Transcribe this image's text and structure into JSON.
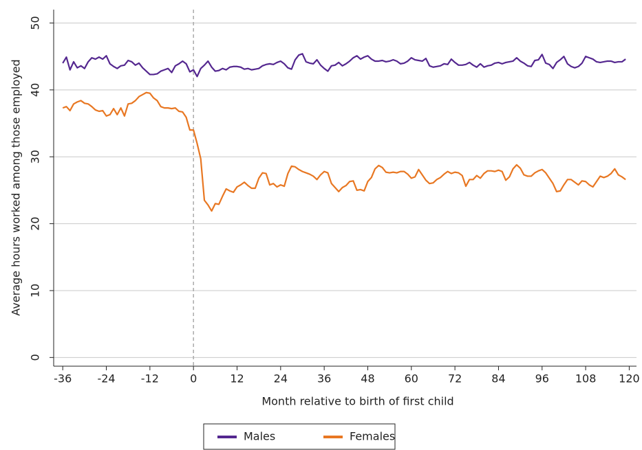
{
  "chart_data": {
    "type": "line",
    "x_label": "Month relative to birth of first child",
    "y_label": "Average hours worked among those employed",
    "x": [
      -36,
      -35,
      -34,
      -33,
      -32,
      -31,
      -30,
      -29,
      -28,
      -27,
      -26,
      -25,
      -24,
      -23,
      -22,
      -21,
      -20,
      -19,
      -18,
      -17,
      -16,
      -15,
      -14,
      -13,
      -12,
      -11,
      -10,
      -9,
      -8,
      -7,
      -6,
      -5,
      -4,
      -3,
      -2,
      -1,
      0,
      1,
      2,
      3,
      4,
      5,
      6,
      7,
      8,
      9,
      10,
      11,
      12,
      13,
      14,
      15,
      16,
      17,
      18,
      19,
      20,
      21,
      22,
      23,
      24,
      25,
      26,
      27,
      28,
      29,
      30,
      31,
      32,
      33,
      34,
      35,
      36,
      37,
      38,
      39,
      40,
      41,
      42,
      43,
      44,
      45,
      46,
      47,
      48,
      49,
      50,
      51,
      52,
      53,
      54,
      55,
      56,
      57,
      58,
      59,
      60,
      61,
      62,
      63,
      64,
      65,
      66,
      67,
      68,
      69,
      70,
      71,
      72,
      73,
      74,
      75,
      76,
      77,
      78,
      79,
      80,
      81,
      82,
      83,
      84,
      85,
      86,
      87,
      88,
      89,
      90,
      91,
      92,
      93,
      94,
      95,
      96,
      97,
      98,
      99,
      100,
      101,
      102,
      103,
      104,
      105,
      106,
      107,
      108,
      109,
      110,
      111,
      112,
      113,
      114,
      115,
      116,
      117,
      118,
      119
    ],
    "series": [
      {
        "name": "Males",
        "color": "#54278f",
        "values": [
          44.0,
          44.9,
          43.0,
          44.2,
          43.3,
          43.6,
          43.2,
          44.2,
          44.8,
          44.6,
          44.9,
          44.6,
          45.1,
          43.9,
          43.5,
          43.2,
          43.6,
          43.7,
          44.4,
          44.2,
          43.7,
          44.0,
          43.3,
          42.8,
          42.3,
          42.3,
          42.4,
          42.8,
          43.0,
          43.2,
          42.6,
          43.6,
          43.9,
          44.3,
          43.9,
          42.7,
          43.0,
          42.0,
          43.2,
          43.7,
          44.3,
          43.4,
          42.8,
          42.9,
          43.2,
          43.0,
          43.4,
          43.5,
          43.5,
          43.4,
          43.1,
          43.2,
          43.0,
          43.1,
          43.2,
          43.6,
          43.8,
          43.9,
          43.8,
          44.1,
          44.3,
          43.9,
          43.3,
          43.1,
          44.5,
          45.2,
          45.4,
          44.2,
          44.0,
          43.9,
          44.5,
          43.7,
          43.2,
          42.8,
          43.6,
          43.7,
          44.1,
          43.6,
          43.9,
          44.3,
          44.8,
          45.1,
          44.6,
          44.9,
          45.1,
          44.6,
          44.3,
          44.3,
          44.4,
          44.2,
          44.3,
          44.5,
          44.3,
          43.9,
          44.0,
          44.3,
          44.8,
          44.5,
          44.4,
          44.3,
          44.7,
          43.6,
          43.4,
          43.5,
          43.6,
          43.9,
          43.8,
          44.6,
          44.1,
          43.7,
          43.7,
          43.8,
          44.1,
          43.7,
          43.4,
          43.9,
          43.4,
          43.6,
          43.7,
          44.0,
          44.1,
          43.9,
          44.1,
          44.2,
          44.3,
          44.8,
          44.3,
          44.0,
          43.6,
          43.5,
          44.4,
          44.5,
          45.3,
          44.0,
          43.8,
          43.2,
          44.1,
          44.5,
          45.0,
          43.9,
          43.5,
          43.3,
          43.5,
          44.0,
          45.0,
          44.8,
          44.6,
          44.2,
          44.1,
          44.2,
          44.3,
          44.3,
          44.1,
          44.2,
          44.2,
          44.6
        ]
      },
      {
        "name": "Females",
        "color": "#e87722",
        "values": [
          37.3,
          37.5,
          36.9,
          37.9,
          38.2,
          38.4,
          38.0,
          37.9,
          37.5,
          37.0,
          36.8,
          36.9,
          36.1,
          36.3,
          37.2,
          36.3,
          37.3,
          36.1,
          37.9,
          38.0,
          38.4,
          39.0,
          39.3,
          39.6,
          39.5,
          38.8,
          38.4,
          37.5,
          37.3,
          37.3,
          37.2,
          37.3,
          36.8,
          36.7,
          35.9,
          34.0,
          34.0,
          32.0,
          29.7,
          23.5,
          22.8,
          21.9,
          23.0,
          22.9,
          24.1,
          25.2,
          24.9,
          24.7,
          25.5,
          25.8,
          26.2,
          25.7,
          25.3,
          25.3,
          26.8,
          27.6,
          27.5,
          25.8,
          26.0,
          25.5,
          25.8,
          25.6,
          27.5,
          28.6,
          28.5,
          28.1,
          27.8,
          27.6,
          27.4,
          27.1,
          26.6,
          27.3,
          27.8,
          27.6,
          26.0,
          25.4,
          24.8,
          25.4,
          25.7,
          26.3,
          26.4,
          25.0,
          25.1,
          24.9,
          26.3,
          26.9,
          28.2,
          28.7,
          28.4,
          27.7,
          27.6,
          27.7,
          27.6,
          27.8,
          27.8,
          27.4,
          26.8,
          27.0,
          28.1,
          27.3,
          26.5,
          26.0,
          26.1,
          26.6,
          26.9,
          27.4,
          27.8,
          27.5,
          27.7,
          27.6,
          27.2,
          25.6,
          26.6,
          26.6,
          27.2,
          26.8,
          27.5,
          27.9,
          27.9,
          27.8,
          28.0,
          27.8,
          26.5,
          27.0,
          28.2,
          28.8,
          28.3,
          27.3,
          27.1,
          27.1,
          27.6,
          27.9,
          28.1,
          27.6,
          26.8,
          26.0,
          24.8,
          24.9,
          25.8,
          26.6,
          26.6,
          26.2,
          25.8,
          26.4,
          26.3,
          25.8,
          25.5,
          26.3,
          27.1,
          26.9,
          27.1,
          27.5,
          28.2,
          27.3,
          27.0,
          26.6
        ]
      }
    ],
    "xlim": [
      -38.5,
      122
    ],
    "xticks": [
      -36,
      -24,
      -12,
      0,
      12,
      24,
      36,
      48,
      60,
      72,
      84,
      96,
      108,
      120
    ],
    "ylim": [
      -1.3,
      52
    ],
    "yticks": [
      0,
      10,
      20,
      30,
      40,
      50
    ],
    "vline": 0,
    "grid": true,
    "legend": "bottom"
  }
}
